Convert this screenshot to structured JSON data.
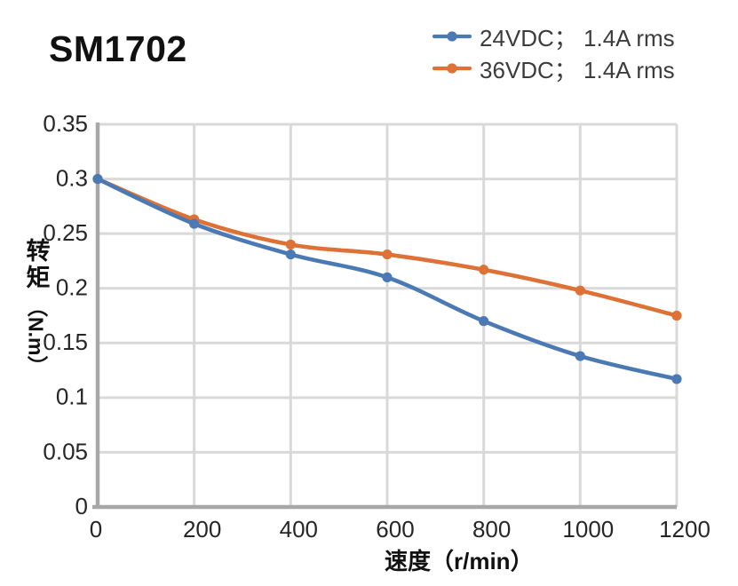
{
  "chart_data": {
    "type": "line",
    "title": "SM1702",
    "x": [
      0,
      200,
      400,
      600,
      800,
      1000,
      1200
    ],
    "series": [
      {
        "name": "24VDC； 1.4A rms",
        "color": "#4A79B4",
        "values": [
          0.3,
          0.259,
          0.231,
          0.21,
          0.17,
          0.138,
          0.117
        ]
      },
      {
        "name": "36VDC； 1.4A rms",
        "color": "#DE7135",
        "values": [
          0.3,
          0.263,
          0.24,
          0.231,
          0.217,
          0.198,
          0.175
        ]
      }
    ],
    "xlabel": "速度（r/min）",
    "ylabel": "转矩",
    "ylabel_unit": "（N.m）",
    "xlim": [
      0,
      1200
    ],
    "ylim": [
      0,
      0.35
    ],
    "x_ticks": [
      0,
      200,
      400,
      600,
      800,
      1000,
      1200
    ],
    "y_ticks": [
      0,
      0.05,
      0.1,
      0.15,
      0.2,
      0.25,
      0.3,
      0.35
    ],
    "grid": true,
    "smooth": true,
    "legend_position": "top-right",
    "colors": {
      "grid": "#D9D9D9",
      "axis": "#A7A7A7",
      "tick_text": "#262626",
      "title_text": "#111111",
      "legend_text": "#3C3C3C",
      "background": "#FFFFFF"
    }
  }
}
